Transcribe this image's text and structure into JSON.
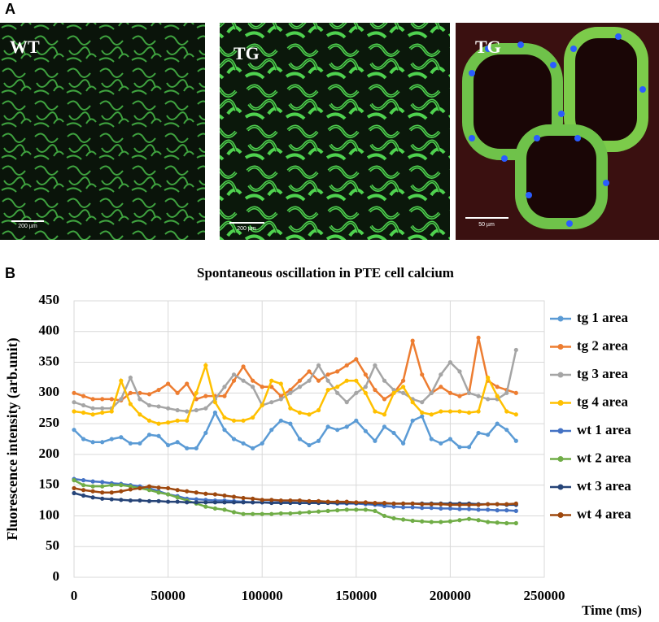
{
  "panel_a": {
    "label": "A",
    "images": [
      {
        "label": "WT",
        "scale_bar": "200 µm"
      },
      {
        "label": "TG",
        "scale_bar": "200 µm"
      },
      {
        "label": "TG",
        "scale_bar": "50 µm"
      }
    ]
  },
  "panel_b": {
    "label": "B"
  },
  "chart_data": {
    "type": "line",
    "title": "Spontaneous oscillation in PTE cell calcium",
    "x_label": "Time (ms)",
    "y_label": "Fluorescence intensity (arb.unit)",
    "xlim": [
      0,
      250000
    ],
    "xticks": [
      0,
      50000,
      100000,
      150000,
      200000,
      250000
    ],
    "ylim": [
      0,
      450
    ],
    "yticks": [
      0,
      50,
      100,
      150,
      200,
      250,
      300,
      350,
      400,
      450
    ],
    "grid": true,
    "legend": "right",
    "x": [
      0,
      5000,
      10000,
      15000,
      20000,
      25000,
      30000,
      35000,
      40000,
      45000,
      50000,
      55000,
      60000,
      65000,
      70000,
      75000,
      80000,
      85000,
      90000,
      95000,
      100000,
      105000,
      110000,
      115000,
      120000,
      125000,
      130000,
      135000,
      140000,
      145000,
      150000,
      155000,
      160000,
      165000,
      170000,
      175000,
      180000,
      185000,
      190000,
      195000,
      200000,
      205000,
      210000,
      215000,
      220000,
      225000,
      230000,
      235000
    ],
    "series": [
      {
        "name": "tg 1 area",
        "color": "#5b9bd5",
        "values": [
          240,
          225,
          220,
          220,
          225,
          228,
          218,
          218,
          232,
          230,
          215,
          220,
          210,
          210,
          235,
          268,
          240,
          225,
          218,
          210,
          218,
          240,
          255,
          250,
          225,
          215,
          222,
          245,
          240,
          245,
          255,
          238,
          222,
          245,
          235,
          218,
          255,
          262,
          225,
          218,
          225,
          212,
          212,
          235,
          232,
          250,
          240,
          222
        ]
      },
      {
        "name": "tg 2 area",
        "color": "#ed7d31",
        "values": [
          300,
          295,
          290,
          290,
          290,
          288,
          300,
          300,
          298,
          305,
          315,
          300,
          315,
          290,
          295,
          295,
          295,
          320,
          343,
          320,
          310,
          310,
          295,
          305,
          320,
          335,
          320,
          330,
          335,
          345,
          355,
          330,
          305,
          290,
          300,
          320,
          385,
          330,
          300,
          310,
          300,
          295,
          300,
          390,
          320,
          310,
          305,
          300
        ]
      },
      {
        "name": "tg 3 area",
        "color": "#a5a5a5",
        "values": [
          285,
          280,
          275,
          275,
          275,
          290,
          325,
          290,
          280,
          278,
          275,
          272,
          270,
          272,
          275,
          290,
          310,
          330,
          320,
          310,
          280,
          285,
          290,
          300,
          310,
          320,
          345,
          320,
          300,
          285,
          300,
          310,
          345,
          320,
          305,
          300,
          290,
          285,
          300,
          330,
          350,
          335,
          300,
          295,
          290,
          290,
          300,
          370
        ]
      },
      {
        "name": "tg 4 area",
        "color": "#ffc000",
        "values": [
          270,
          268,
          265,
          268,
          270,
          320,
          282,
          265,
          255,
          250,
          252,
          255,
          255,
          300,
          345,
          285,
          260,
          255,
          255,
          260,
          280,
          320,
          315,
          275,
          268,
          265,
          272,
          305,
          310,
          320,
          320,
          300,
          270,
          265,
          300,
          310,
          285,
          268,
          265,
          270,
          270,
          270,
          268,
          270,
          325,
          295,
          270,
          265
        ]
      },
      {
        "name": "wt 1 area",
        "color": "#4472c4",
        "values": [
          160,
          158,
          156,
          155,
          153,
          152,
          150,
          148,
          145,
          140,
          135,
          132,
          128,
          127,
          126,
          125,
          125,
          124,
          123,
          122,
          122,
          122,
          122,
          122,
          121,
          121,
          121,
          121,
          120,
          120,
          120,
          119,
          118,
          116,
          115,
          114,
          114,
          113,
          113,
          112,
          112,
          111,
          111,
          110,
          110,
          109,
          109,
          108
        ]
      },
      {
        "name": "wt 2 area",
        "color": "#70ad47",
        "values": [
          158,
          150,
          148,
          148,
          150,
          150,
          148,
          145,
          142,
          138,
          135,
          130,
          125,
          120,
          115,
          112,
          110,
          106,
          103,
          103,
          103,
          103,
          104,
          104,
          105,
          106,
          107,
          108,
          109,
          110,
          110,
          110,
          108,
          100,
          96,
          94,
          92,
          91,
          90,
          90,
          91,
          93,
          95,
          93,
          90,
          89,
          88,
          88
        ]
      },
      {
        "name": "wt 3 area",
        "color": "#264478",
        "values": [
          137,
          133,
          130,
          128,
          127,
          126,
          125,
          125,
          124,
          124,
          123,
          123,
          122,
          122,
          122,
          122,
          122,
          122,
          122,
          122,
          122,
          121,
          121,
          121,
          121,
          121,
          121,
          121,
          121,
          121,
          121,
          121,
          120,
          120,
          120,
          120,
          120,
          120,
          120,
          120,
          120,
          120,
          120,
          119,
          119,
          119,
          118,
          118
        ]
      },
      {
        "name": "wt 4 area",
        "color": "#9e480e",
        "values": [
          145,
          142,
          140,
          138,
          138,
          140,
          143,
          145,
          148,
          146,
          145,
          142,
          140,
          138,
          136,
          135,
          133,
          131,
          129,
          128,
          126,
          126,
          125,
          125,
          125,
          124,
          124,
          123,
          123,
          123,
          122,
          122,
          121,
          121,
          120,
          120,
          120,
          119,
          119,
          119,
          118,
          118,
          118,
          118,
          119,
          119,
          119,
          120
        ]
      }
    ]
  }
}
